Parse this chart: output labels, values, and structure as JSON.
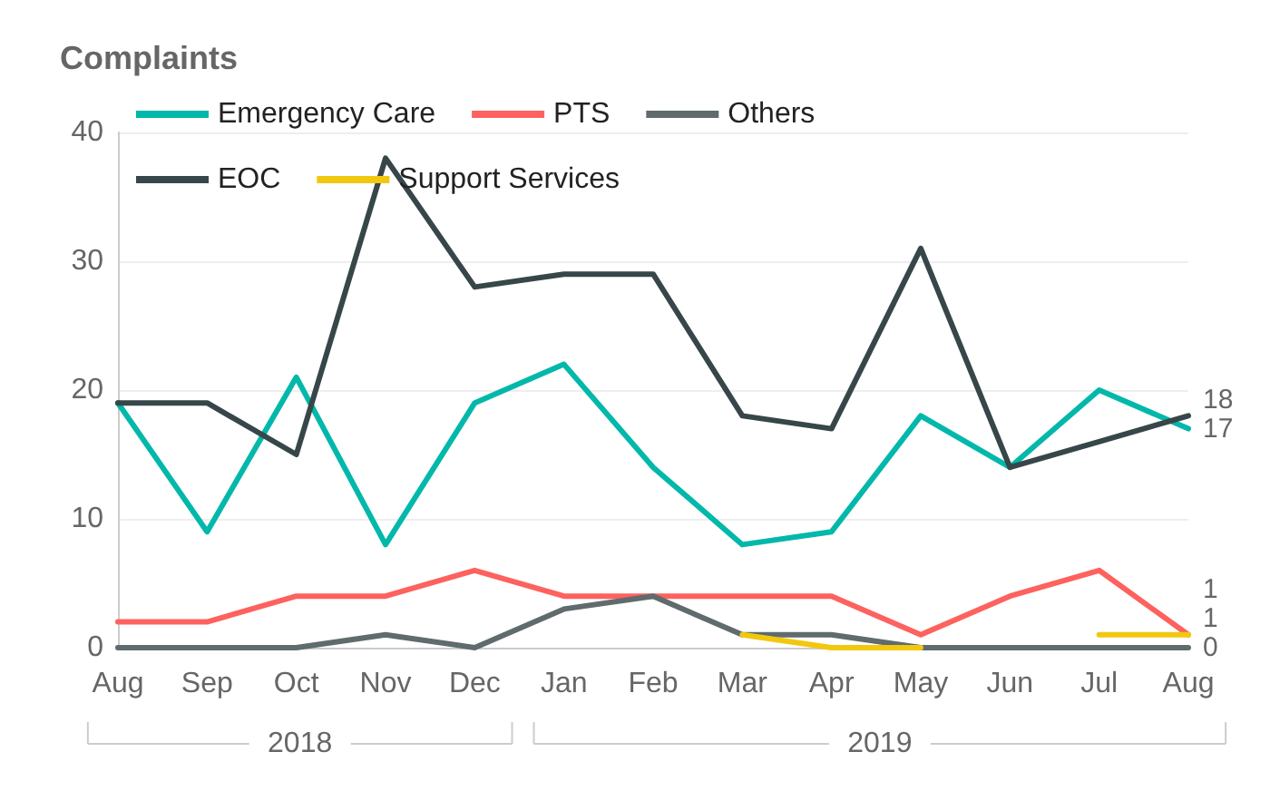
{
  "chart_data": {
    "type": "line",
    "title": "Complaints",
    "categories": [
      "Aug",
      "Sep",
      "Oct",
      "Nov",
      "Dec",
      "Jan",
      "Feb",
      "Mar",
      "Apr",
      "May",
      "Jun",
      "Jul",
      "Aug"
    ],
    "series": [
      {
        "name": "Emergency Care",
        "color": "#01b8aa",
        "values": [
          19,
          9,
          21,
          8,
          19,
          22,
          14,
          8,
          9,
          18,
          14,
          20,
          17
        ],
        "value_labels": [
          null,
          null,
          null,
          null,
          null,
          null,
          null,
          null,
          null,
          null,
          null,
          null,
          "17"
        ]
      },
      {
        "name": "PTS",
        "color": "#fd625e",
        "values": [
          2,
          2,
          4,
          4,
          6,
          4,
          4,
          4,
          4,
          1,
          4,
          6,
          1
        ],
        "value_labels": [
          null,
          null,
          null,
          null,
          null,
          null,
          null,
          null,
          null,
          null,
          null,
          null,
          "1"
        ]
      },
      {
        "name": "Others",
        "color": "#5f6b6d",
        "values": [
          0,
          0,
          0,
          1,
          0,
          3,
          4,
          1,
          1,
          0,
          0,
          0,
          0
        ],
        "value_labels": [
          null,
          null,
          null,
          null,
          null,
          null,
          null,
          null,
          null,
          null,
          null,
          null,
          "0"
        ]
      },
      {
        "name": "EOC",
        "color": "#374649",
        "values": [
          19,
          19,
          15,
          38,
          28,
          29,
          29,
          18,
          17,
          31,
          14,
          16,
          18
        ],
        "value_labels": [
          null,
          null,
          null,
          null,
          null,
          null,
          null,
          null,
          null,
          null,
          null,
          null,
          "18"
        ]
      },
      {
        "name": "Support Services",
        "color": "#f2c80f",
        "values": [
          null,
          null,
          null,
          null,
          null,
          null,
          null,
          1,
          0,
          0,
          null,
          1,
          1
        ],
        "value_labels": [
          null,
          null,
          null,
          null,
          null,
          null,
          null,
          null,
          null,
          null,
          null,
          null,
          "1"
        ]
      }
    ],
    "ylim": [
      0,
      40
    ],
    "yticks": [
      0,
      10,
      20,
      30,
      40
    ],
    "grid": "y",
    "legend": "top",
    "marker": "none",
    "line_style": "solid",
    "annotations": [
      "2018",
      "2019"
    ]
  }
}
